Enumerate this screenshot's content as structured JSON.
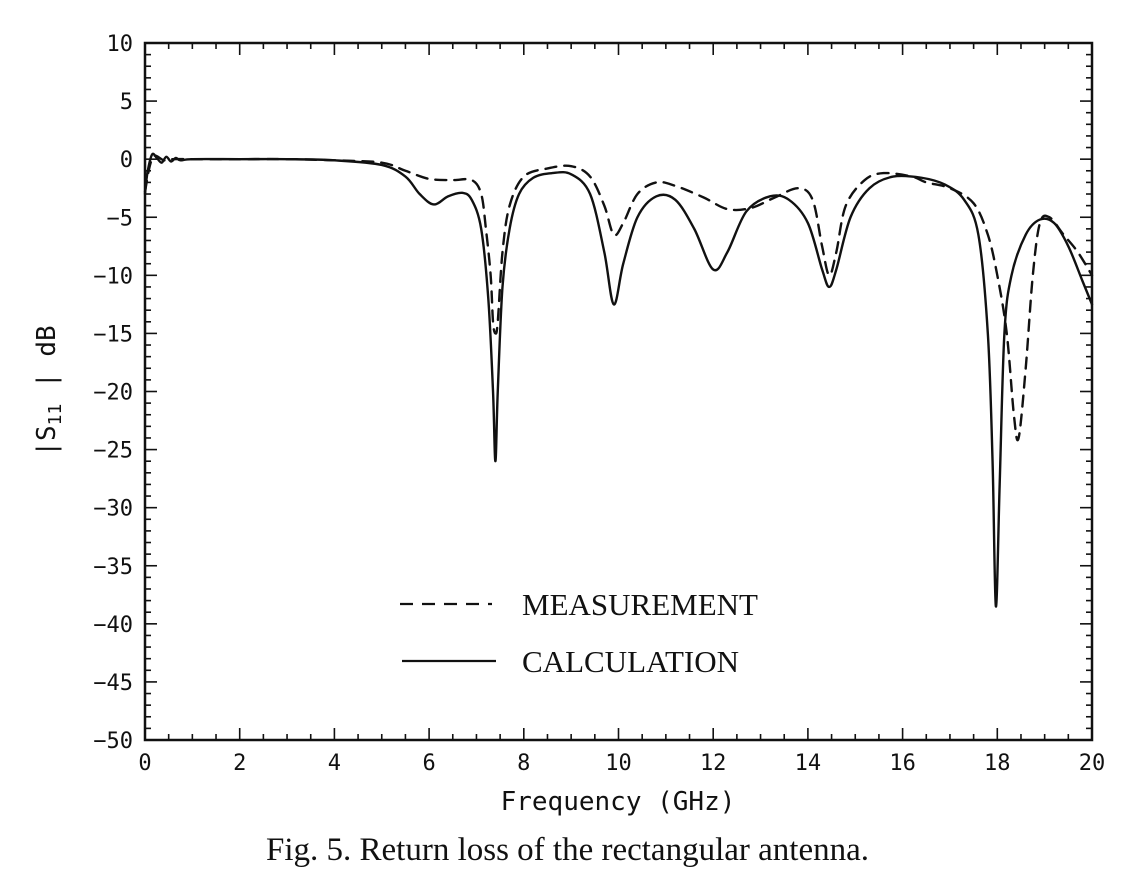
{
  "chart_data": {
    "type": "line",
    "title": "",
    "xlabel": "Frequency (GHz)",
    "ylabel_parts": {
      "prefix": "|S",
      "subscript": "11",
      "suffix": " | dB"
    },
    "xlim": [
      0,
      20
    ],
    "ylim": [
      -50,
      10
    ],
    "x_ticks": [
      0,
      2,
      4,
      6,
      8,
      10,
      12,
      14,
      16,
      18,
      20
    ],
    "y_ticks": [
      10,
      5,
      0,
      -5,
      -10,
      -15,
      -20,
      -25,
      -30,
      -35,
      -40,
      -45,
      -50
    ],
    "x_tick_labels": [
      "0",
      "2",
      "4",
      "6",
      "8",
      "10",
      "12",
      "14",
      "16",
      "18",
      "20"
    ],
    "y_tick_labels": [
      "10",
      "5",
      "0",
      "−5",
      "−10",
      "−15",
      "−20",
      "−25",
      "−30",
      "−35",
      "−40",
      "−45",
      "−50"
    ],
    "grid": false,
    "legend_position": "lower-center",
    "series": [
      {
        "name": "MEASUREMENT",
        "style": "dashed",
        "points": [
          [
            0,
            -2.8
          ],
          [
            0.1,
            -0.6
          ],
          [
            0.2,
            0.3
          ],
          [
            0.4,
            -0.1
          ],
          [
            0.6,
            0
          ],
          [
            1,
            0
          ],
          [
            2,
            0
          ],
          [
            3,
            0
          ],
          [
            4,
            -0.1
          ],
          [
            5,
            -0.3
          ],
          [
            5.5,
            -1.0
          ],
          [
            6,
            -1.7
          ],
          [
            6.5,
            -1.8
          ],
          [
            6.9,
            -1.8
          ],
          [
            7.1,
            -3
          ],
          [
            7.2,
            -6
          ],
          [
            7.3,
            -10
          ],
          [
            7.35,
            -14
          ],
          [
            7.4,
            -15
          ],
          [
            7.45,
            -14
          ],
          [
            7.55,
            -8
          ],
          [
            7.7,
            -4
          ],
          [
            8,
            -1.5
          ],
          [
            8.5,
            -0.8
          ],
          [
            9,
            -0.6
          ],
          [
            9.4,
            -1.5
          ],
          [
            9.7,
            -4
          ],
          [
            9.9,
            -6.5
          ],
          [
            10.1,
            -5.5
          ],
          [
            10.4,
            -3
          ],
          [
            10.8,
            -2
          ],
          [
            11.2,
            -2.3
          ],
          [
            11.8,
            -3.3
          ],
          [
            12.3,
            -4.3
          ],
          [
            12.8,
            -4.2
          ],
          [
            13.3,
            -3.3
          ],
          [
            13.8,
            -2.5
          ],
          [
            14.1,
            -3.5
          ],
          [
            14.3,
            -7.5
          ],
          [
            14.45,
            -10
          ],
          [
            14.6,
            -8
          ],
          [
            14.8,
            -4
          ],
          [
            15.2,
            -1.8
          ],
          [
            15.6,
            -1.2
          ],
          [
            16.2,
            -1.5
          ],
          [
            16.5,
            -2
          ],
          [
            17,
            -2.5
          ],
          [
            17.5,
            -3.8
          ],
          [
            17.8,
            -6.5
          ],
          [
            18,
            -10
          ],
          [
            18.2,
            -15
          ],
          [
            18.35,
            -22
          ],
          [
            18.45,
            -24
          ],
          [
            18.6,
            -18
          ],
          [
            18.75,
            -10
          ],
          [
            18.9,
            -5.5
          ],
          [
            19.1,
            -5
          ],
          [
            19.4,
            -6.5
          ],
          [
            19.7,
            -8
          ],
          [
            20,
            -10
          ]
        ]
      },
      {
        "name": "CALCULATION",
        "style": "solid",
        "points": [
          [
            0,
            -3
          ],
          [
            0.05,
            -1.2
          ],
          [
            0.15,
            0.4
          ],
          [
            0.25,
            0.1
          ],
          [
            0.35,
            -0.3
          ],
          [
            0.45,
            0.2
          ],
          [
            0.55,
            -0.2
          ],
          [
            0.65,
            0.1
          ],
          [
            0.75,
            -0.1
          ],
          [
            1,
            0
          ],
          [
            2,
            0
          ],
          [
            3,
            0
          ],
          [
            4,
            -0.1
          ],
          [
            5,
            -0.5
          ],
          [
            5.5,
            -1.5
          ],
          [
            5.8,
            -3
          ],
          [
            6.1,
            -3.9
          ],
          [
            6.4,
            -3.2
          ],
          [
            6.7,
            -2.9
          ],
          [
            6.9,
            -3.5
          ],
          [
            7.1,
            -6
          ],
          [
            7.25,
            -12
          ],
          [
            7.35,
            -20
          ],
          [
            7.4,
            -26
          ],
          [
            7.45,
            -20
          ],
          [
            7.55,
            -11
          ],
          [
            7.7,
            -6
          ],
          [
            7.9,
            -3
          ],
          [
            8.2,
            -1.6
          ],
          [
            8.6,
            -1.2
          ],
          [
            9,
            -1.3
          ],
          [
            9.4,
            -3
          ],
          [
            9.7,
            -8
          ],
          [
            9.9,
            -12.5
          ],
          [
            10.1,
            -9
          ],
          [
            10.4,
            -5
          ],
          [
            10.8,
            -3.2
          ],
          [
            11.2,
            -3.5
          ],
          [
            11.6,
            -6
          ],
          [
            12,
            -9.5
          ],
          [
            12.3,
            -8
          ],
          [
            12.7,
            -4.5
          ],
          [
            13.2,
            -3.2
          ],
          [
            13.6,
            -3.5
          ],
          [
            14,
            -5.5
          ],
          [
            14.3,
            -9.5
          ],
          [
            14.45,
            -11
          ],
          [
            14.6,
            -9.5
          ],
          [
            14.9,
            -5
          ],
          [
            15.3,
            -2.5
          ],
          [
            15.8,
            -1.5
          ],
          [
            16.4,
            -1.6
          ],
          [
            16.9,
            -2.2
          ],
          [
            17.3,
            -3.5
          ],
          [
            17.6,
            -6.5
          ],
          [
            17.8,
            -15
          ],
          [
            17.9,
            -26
          ],
          [
            17.97,
            -38.5
          ],
          [
            18.05,
            -28
          ],
          [
            18.15,
            -15
          ],
          [
            18.3,
            -10
          ],
          [
            18.6,
            -6.5
          ],
          [
            18.9,
            -5.2
          ],
          [
            19.2,
            -5.5
          ],
          [
            19.5,
            -7.5
          ],
          [
            19.8,
            -10.5
          ],
          [
            20,
            -12.5
          ]
        ]
      }
    ]
  },
  "caption": "Fig. 5.   Return loss of the rectangular antenna."
}
